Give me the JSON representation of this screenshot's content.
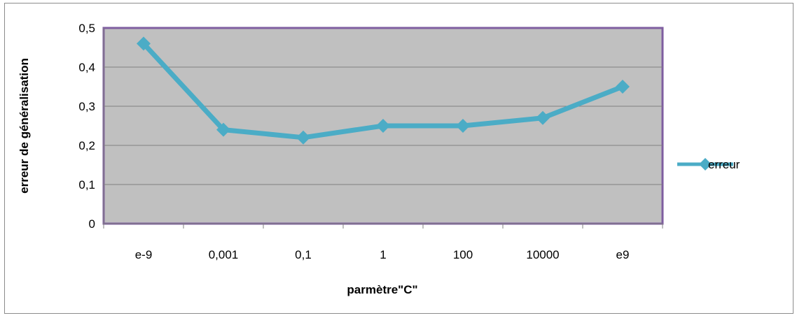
{
  "chart_data": {
    "type": "line",
    "categories": [
      "e-9",
      "0,001",
      "0,1",
      "1",
      "100",
      "10000",
      "e9"
    ],
    "series": [
      {
        "name": "erreur",
        "values": [
          0.46,
          0.24,
          0.22,
          0.25,
          0.25,
          0.27,
          0.35
        ]
      }
    ],
    "yticks": [
      "0",
      "0,1",
      "0,2",
      "0,3",
      "0,4",
      "0,5"
    ],
    "ylim": [
      0,
      0.5
    ],
    "xlabel": "parmètre\"C\"",
    "ylabel": "erreur de généralisation",
    "grid": true,
    "legend": "right",
    "colors": {
      "plot_bg": "#c0c0c0",
      "plot_border": "#7f5ea0",
      "series": "#4bacc6",
      "grid": "#808080",
      "axis": "#808080"
    }
  }
}
